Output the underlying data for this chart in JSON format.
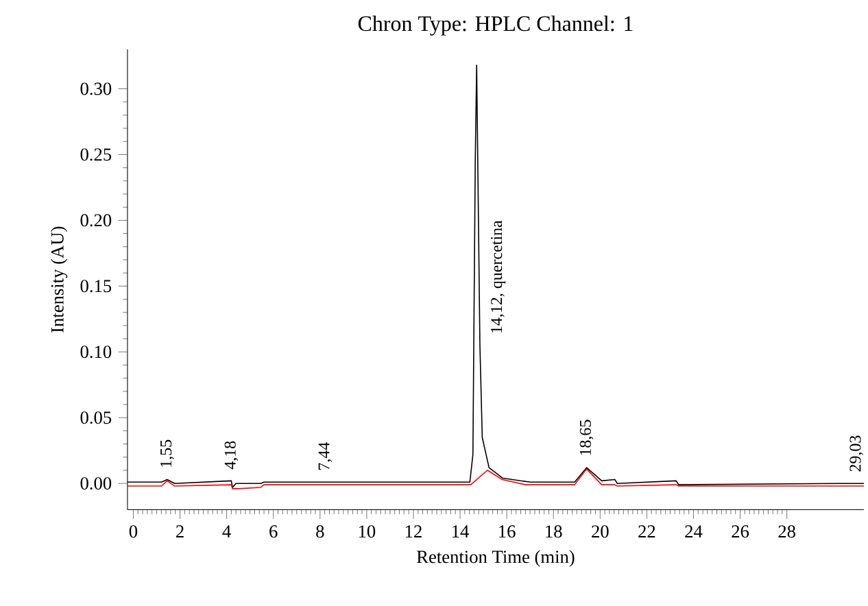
{
  "chart_data": {
    "type": "line",
    "title": "Chron Type: HPLC Channel: 1",
    "xlabel": "Retention Time (min)",
    "ylabel": "Intensity (AU)",
    "xlim": [
      -0.25,
      31.3
    ],
    "ylim": [
      -0.02,
      0.33
    ],
    "xticks": [
      0,
      2,
      4,
      6,
      8,
      10,
      12,
      14,
      16,
      18,
      20,
      22,
      24,
      26,
      28
    ],
    "yticks": [
      {
        "value": 0,
        "label": "0.00"
      },
      {
        "value": 0.05,
        "label": "0.05"
      },
      {
        "value": 0.1,
        "label": "0.10"
      },
      {
        "value": 0.15,
        "label": "0.15"
      },
      {
        "value": 0.2,
        "label": "0.20"
      },
      {
        "value": 0.25,
        "label": "0.25"
      },
      {
        "value": 0.3,
        "label": "0.30"
      }
    ],
    "grid": false,
    "marker": "none",
    "line_style": "solid",
    "series": [
      {
        "color": "#000000",
        "x": [
          -0.25,
          1.21,
          1.45,
          1.77,
          4.2,
          4.25,
          4.4,
          5.46,
          5.6,
          7.44,
          14.42,
          14.55,
          14.65,
          14.71,
          14.85,
          14.95,
          15.24,
          15.83,
          17.0,
          18.91,
          19.42,
          20.07,
          20.63,
          20.73,
          23.26,
          23.36,
          30.2,
          31.3
        ],
        "values": [
          0.001,
          0.001,
          0.003,
          0.0,
          0.002,
          -0.003,
          0,
          0.0,
          0.001,
          0.001,
          0.001,
          0.022,
          0.244,
          0.318,
          0.105,
          0.035,
          0.012,
          0.004,
          0.001,
          0.001,
          0.012,
          0.002,
          0.003,
          0.0,
          0.002,
          -0.001,
          0.0,
          0.0
        ]
      },
      {
        "color": "#ff0000",
        "x": [
          -0.25,
          1.21,
          1.45,
          1.77,
          4.2,
          4.25,
          4.5,
          5.46,
          5.6,
          14.46,
          15.17,
          15.8,
          16.8,
          18.91,
          19.42,
          20.07,
          20.63,
          20.73,
          23.26,
          23.36,
          31.3
        ],
        "values": [
          -0.002,
          -0.002,
          0.002,
          -0.002,
          -0.001,
          -0.004,
          -0.004,
          -0.003,
          -0.001,
          -0.001,
          0.01,
          0.003,
          -0.001,
          -0.001,
          0.011,
          -0.001,
          -0.001,
          -0.002,
          -0.001,
          -0.002,
          -0.002
        ]
      }
    ],
    "annotations": [
      {
        "text": "1,55",
        "x": 1.45,
        "y": 0.003
      },
      {
        "text": "4,18",
        "x": 4.2,
        "y": 0.002
      },
      {
        "text": "7,44",
        "x": 7.44,
        "y": 0.001
      },
      {
        "text": "14,12, quercetina",
        "x": 14.85,
        "y": 0.105
      },
      {
        "text": "18,65",
        "x": 19.42,
        "y": 0.012
      },
      {
        "text": "29,03",
        "x": 30.2,
        "y": 0.0
      }
    ]
  }
}
